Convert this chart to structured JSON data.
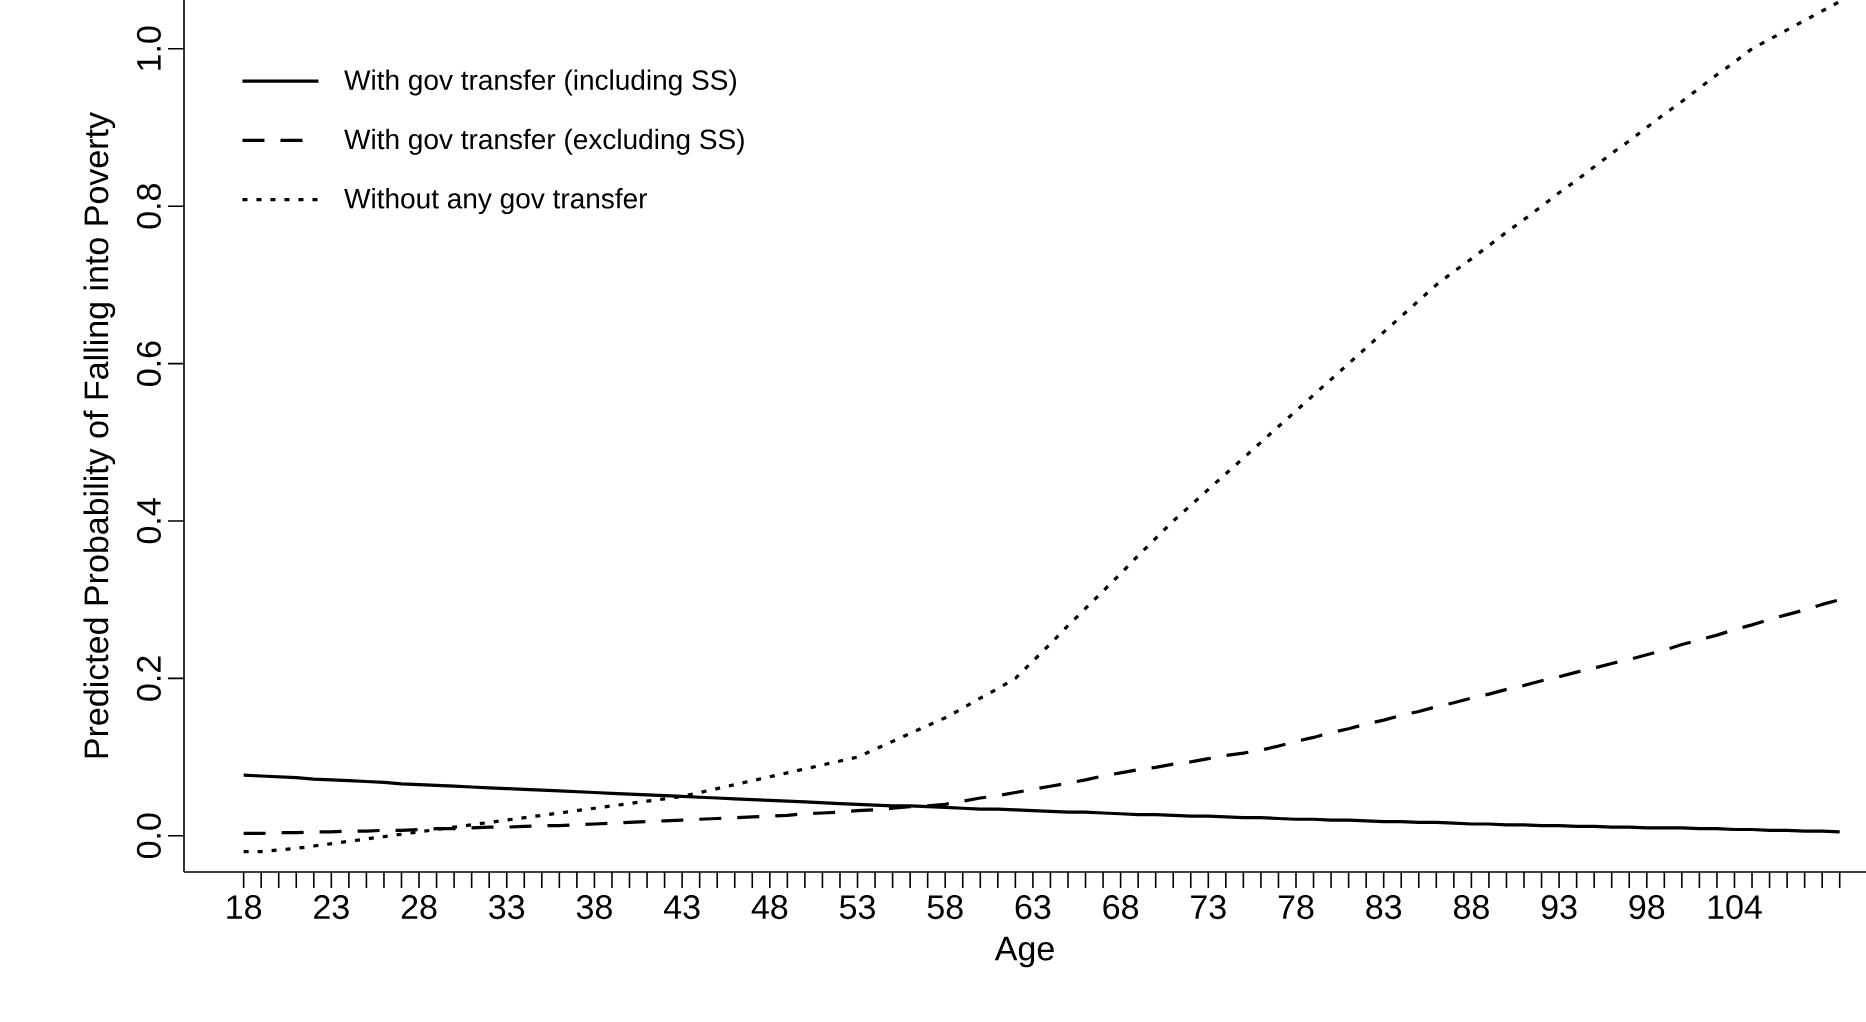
{
  "chart_data": {
    "type": "line",
    "xlabel": "Age",
    "ylabel": "Predicted Probability of Falling into Poverty",
    "categories": [
      "18",
      null,
      null,
      null,
      null,
      "23",
      null,
      null,
      null,
      null,
      "28",
      null,
      null,
      null,
      null,
      "33",
      null,
      null,
      null,
      null,
      "38",
      null,
      null,
      null,
      null,
      "43",
      null,
      null,
      null,
      null,
      "48",
      null,
      null,
      null,
      null,
      "53",
      null,
      null,
      null,
      null,
      "58",
      null,
      null,
      null,
      null,
      "63",
      null,
      null,
      null,
      null,
      "68",
      null,
      null,
      null,
      null,
      "73",
      null,
      null,
      null,
      null,
      "78",
      null,
      null,
      null,
      null,
      "83",
      null,
      null,
      null,
      null,
      "88",
      null,
      null,
      null,
      null,
      "93",
      null,
      null,
      null,
      null,
      "98",
      null,
      null,
      null,
      null,
      "104",
      null,
      null,
      null,
      null,
      null,
      null
    ],
    "ylim": [
      -0.046,
      1.062
    ],
    "yticks": [
      {
        "value": 0,
        "label": "0.0"
      },
      {
        "value": 0.2,
        "label": "0.2"
      },
      {
        "value": 0.4,
        "label": "0.4"
      },
      {
        "value": 0.6,
        "label": "0.6"
      },
      {
        "value": 0.8,
        "label": "0.8"
      },
      {
        "value": 1.0,
        "label": "1.0"
      }
    ],
    "legend": "top left",
    "grid": false,
    "marker": "none",
    "series": [
      {
        "name": "With gov transfer (including SS)",
        "color": "#000000",
        "line_style": "solid",
        "values": [
          0.077,
          0.076,
          0.075,
          0.074,
          0.072,
          0.071,
          0.07,
          0.069,
          0.068,
          0.066,
          0.065,
          0.064,
          0.063,
          0.062,
          0.061,
          0.06,
          0.059,
          0.058,
          0.057,
          0.056,
          0.055,
          0.054,
          0.053,
          0.052,
          0.051,
          0.05,
          0.049,
          0.048,
          0.047,
          0.046,
          0.045,
          0.044,
          0.043,
          0.042,
          0.041,
          0.04,
          0.039,
          0.038,
          0.038,
          0.037,
          0.036,
          0.035,
          0.034,
          0.034,
          0.033,
          0.032,
          0.031,
          0.03,
          0.03,
          0.029,
          0.028,
          0.027,
          0.027,
          0.026,
          0.025,
          0.025,
          0.024,
          0.023,
          0.023,
          0.022,
          0.021,
          0.021,
          0.02,
          0.02,
          0.019,
          0.018,
          0.018,
          0.017,
          0.017,
          0.016,
          0.015,
          0.015,
          0.014,
          0.014,
          0.013,
          0.013,
          0.012,
          0.012,
          0.011,
          0.011,
          0.01,
          0.01,
          0.01,
          0.009,
          0.009,
          0.008,
          0.008,
          0.007,
          0.007,
          0.006,
          0.006,
          0.005
        ]
      },
      {
        "name": "With gov transfer (excluding SS)",
        "color": "#000000",
        "line_style": "dashed",
        "values": [
          0.003,
          0.003,
          0.004,
          0.004,
          0.005,
          0.005,
          0.006,
          0.006,
          0.007,
          0.007,
          0.008,
          0.009,
          0.009,
          0.01,
          0.011,
          0.011,
          0.012,
          0.013,
          0.013,
          0.014,
          0.015,
          0.016,
          0.017,
          0.018,
          0.019,
          0.02,
          0.021,
          0.022,
          0.023,
          0.024,
          0.025,
          0.026,
          0.028,
          0.029,
          0.03,
          0.032,
          0.033,
          0.035,
          0.037,
          0.038,
          0.04,
          0.044,
          0.048,
          0.051,
          0.055,
          0.059,
          0.063,
          0.067,
          0.071,
          0.076,
          0.08,
          0.084,
          0.087,
          0.091,
          0.094,
          0.098,
          0.102,
          0.105,
          0.109,
          0.114,
          0.12,
          0.125,
          0.131,
          0.136,
          0.142,
          0.147,
          0.153,
          0.158,
          0.164,
          0.169,
          0.175,
          0.18,
          0.186,
          0.191,
          0.197,
          0.202,
          0.208,
          0.213,
          0.219,
          0.224,
          0.23,
          0.236,
          0.243,
          0.249,
          0.255,
          0.262,
          0.268,
          0.275,
          0.281,
          0.287,
          0.294,
          0.3
        ]
      },
      {
        "name": "Without any gov transfer",
        "color": "#000000",
        "line_style": "dotted",
        "values": [
          -0.02,
          -0.02,
          -0.018,
          -0.016,
          -0.013,
          -0.01,
          -0.007,
          -0.004,
          -0.001,
          0.002,
          0.005,
          0.008,
          0.011,
          0.014,
          0.017,
          0.02,
          0.023,
          0.026,
          0.029,
          0.032,
          0.035,
          0.038,
          0.041,
          0.044,
          0.047,
          0.05,
          0.055,
          0.06,
          0.065,
          0.07,
          0.075,
          0.08,
          0.085,
          0.09,
          0.095,
          0.1,
          0.11,
          0.12,
          0.13,
          0.14,
          0.15,
          0.162,
          0.175,
          0.187,
          0.2,
          0.222,
          0.244,
          0.267,
          0.289,
          0.311,
          0.333,
          0.356,
          0.378,
          0.4,
          0.42,
          0.44,
          0.46,
          0.48,
          0.5,
          0.52,
          0.54,
          0.56,
          0.58,
          0.6,
          0.62,
          0.64,
          0.66,
          0.68,
          0.7,
          0.717,
          0.733,
          0.75,
          0.767,
          0.783,
          0.8,
          0.817,
          0.833,
          0.85,
          0.867,
          0.883,
          0.9,
          0.917,
          0.933,
          0.95,
          0.967,
          0.983,
          1.0,
          1.012,
          1.024,
          1.036,
          1.048,
          1.06
        ]
      }
    ]
  }
}
